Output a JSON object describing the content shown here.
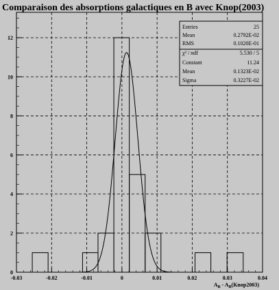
{
  "chart_data": {
    "type": "bar",
    "title": "Comparaison des absorptions galactiques en B avec Knop(2003)",
    "xlabel": "A_B - A_B(Knop2003)",
    "xlabel_parts": {
      "main": "A",
      "sub1": "B",
      "mid": " - A",
      "sub2": "B",
      "tail": "(Knop2003)"
    },
    "ylabel": "",
    "xlim": [
      -0.03,
      0.04
    ],
    "ylim": [
      0,
      13.3
    ],
    "x_ticks": [
      -0.03,
      -0.02,
      -0.01,
      0,
      0.01,
      0.02,
      0.03,
      0.04
    ],
    "x_tick_labels": [
      "-0.03",
      "-0.02",
      "-0.01",
      "0",
      "0.01",
      "0.02",
      "0.03",
      "0.04"
    ],
    "y_ticks": [
      0,
      2,
      4,
      6,
      8,
      10,
      12
    ],
    "y_tick_labels": [
      "0",
      "2",
      "4",
      "6",
      "8",
      "10",
      "12"
    ],
    "grid": true,
    "histogram": {
      "bins": [
        {
          "x0": -0.0255,
          "x1": -0.021,
          "count": 1
        },
        {
          "x0": -0.0112,
          "x1": -0.0068,
          "count": 1
        },
        {
          "x0": -0.0068,
          "x1": -0.0023,
          "count": 2
        },
        {
          "x0": -0.0023,
          "x1": 0.0021,
          "count": 12
        },
        {
          "x0": 0.0021,
          "x1": 0.0066,
          "count": 5
        },
        {
          "x0": 0.0066,
          "x1": 0.0111,
          "count": 2
        },
        {
          "x0": 0.0208,
          "x1": 0.0253,
          "count": 1
        },
        {
          "x0": 0.0299,
          "x1": 0.0345,
          "count": 1
        }
      ]
    },
    "fit": {
      "function": "gaussian",
      "constant": 11.24,
      "mean": 0.001323,
      "sigma": 0.003227
    },
    "stats_box": {
      "rows": [
        {
          "label": "Entries",
          "value": "25"
        },
        {
          "label": "Mean",
          "value": "0.2792E-02"
        },
        {
          "label": "RMS",
          "value": "0.1020E-01"
        }
      ],
      "fit_rows": [
        {
          "label": "χ² / ndf",
          "value": "5.530  /  5"
        },
        {
          "label": "Constant",
          "value": "11.24"
        },
        {
          "label": "Mean",
          "value": "0.1323E-02"
        },
        {
          "label": "Sigma",
          "value": "0.3227E-02"
        }
      ],
      "placement": "top-right"
    }
  },
  "colors": {
    "background": "#c8c8c8",
    "ink": "#000000"
  }
}
